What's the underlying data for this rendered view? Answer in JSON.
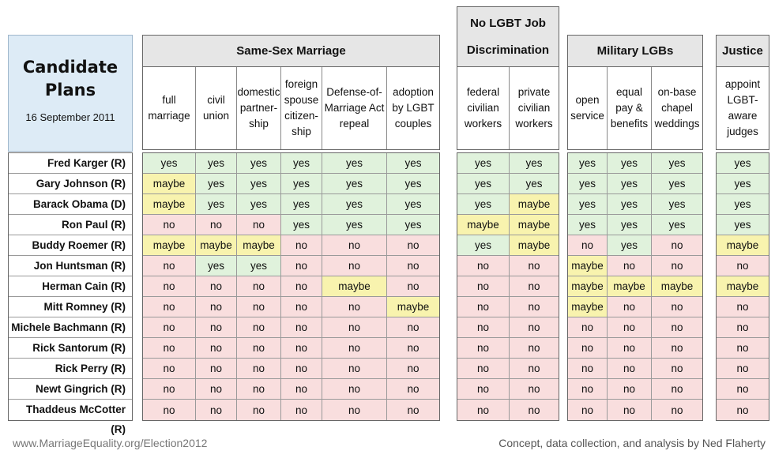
{
  "title": {
    "line1": "Candidate",
    "line2": "Plans",
    "date": "16 September 2011"
  },
  "groups": [
    {
      "name": "Same-Sex Marriage",
      "cols": 6
    },
    {
      "name": "No LGBT Job Discrimination",
      "cols": 2
    },
    {
      "name": "Military LGBs",
      "cols": 3
    },
    {
      "name": "Justice",
      "cols": 1
    }
  ],
  "columns": [
    "full marriage",
    "civil union",
    "domestic partner-ship",
    "foreign spouse citizen-ship",
    "Defense-of-Marriage Act repeal",
    "adoption by LGBT couples",
    "federal civilian workers",
    "private civilian workers",
    "open service",
    "equal pay & benefits",
    "on-base chapel weddings",
    "appoint LGBT-aware judges"
  ],
  "candidates": [
    {
      "name": "Fred Karger (R)",
      "values": [
        "yes",
        "yes",
        "yes",
        "yes",
        "yes",
        "yes",
        "yes",
        "yes",
        "yes",
        "yes",
        "yes",
        "yes"
      ]
    },
    {
      "name": "Gary Johnson (R)",
      "values": [
        "maybe",
        "yes",
        "yes",
        "yes",
        "yes",
        "yes",
        "yes",
        "yes",
        "yes",
        "yes",
        "yes",
        "yes"
      ]
    },
    {
      "name": "Barack Obama (D)",
      "values": [
        "maybe",
        "yes",
        "yes",
        "yes",
        "yes",
        "yes",
        "yes",
        "maybe",
        "yes",
        "yes",
        "yes",
        "yes"
      ]
    },
    {
      "name": "Ron Paul (R)",
      "values": [
        "no",
        "no",
        "no",
        "yes",
        "yes",
        "yes",
        "maybe",
        "maybe",
        "yes",
        "yes",
        "yes",
        "yes"
      ]
    },
    {
      "name": "Buddy Roemer (R)",
      "values": [
        "maybe",
        "maybe",
        "maybe",
        "no",
        "no",
        "no",
        "yes",
        "maybe",
        "no",
        "yes",
        "no",
        "maybe"
      ]
    },
    {
      "name": "Jon Huntsman (R)",
      "values": [
        "no",
        "yes",
        "yes",
        "no",
        "no",
        "no",
        "no",
        "no",
        "maybe",
        "no",
        "no",
        "no"
      ]
    },
    {
      "name": "Herman Cain (R)",
      "values": [
        "no",
        "no",
        "no",
        "no",
        "maybe",
        "no",
        "no",
        "no",
        "maybe",
        "maybe",
        "maybe",
        "maybe"
      ]
    },
    {
      "name": "Mitt Romney (R)",
      "values": [
        "no",
        "no",
        "no",
        "no",
        "no",
        "maybe",
        "no",
        "no",
        "maybe",
        "no",
        "no",
        "no"
      ]
    },
    {
      "name": "Michele Bachmann (R)",
      "values": [
        "no",
        "no",
        "no",
        "no",
        "no",
        "no",
        "no",
        "no",
        "no",
        "no",
        "no",
        "no"
      ]
    },
    {
      "name": "Rick Santorum (R)",
      "values": [
        "no",
        "no",
        "no",
        "no",
        "no",
        "no",
        "no",
        "no",
        "no",
        "no",
        "no",
        "no"
      ]
    },
    {
      "name": "Rick Perry (R)",
      "values": [
        "no",
        "no",
        "no",
        "no",
        "no",
        "no",
        "no",
        "no",
        "no",
        "no",
        "no",
        "no"
      ]
    },
    {
      "name": "Newt Gingrich (R)",
      "values": [
        "no",
        "no",
        "no",
        "no",
        "no",
        "no",
        "no",
        "no",
        "no",
        "no",
        "no",
        "no"
      ]
    },
    {
      "name": "Thaddeus McCotter (R)",
      "values": [
        "no",
        "no",
        "no",
        "no",
        "no",
        "no",
        "no",
        "no",
        "no",
        "no",
        "no",
        "no"
      ]
    }
  ],
  "colors": {
    "yes": "#e0f2dc",
    "no": "#f9dede",
    "maybe": "#f8f3ae",
    "title_bg": "#ddebf6",
    "group_bg": "#e6e6e6"
  },
  "footer": {
    "left": "www.MarriageEquality.org/Election2012",
    "right": "Concept, data collection, and analysis by Ned Flaherty"
  },
  "chart_data": {
    "type": "table",
    "title": "Candidate Plans",
    "subtitle": "16 September 2011"
  }
}
